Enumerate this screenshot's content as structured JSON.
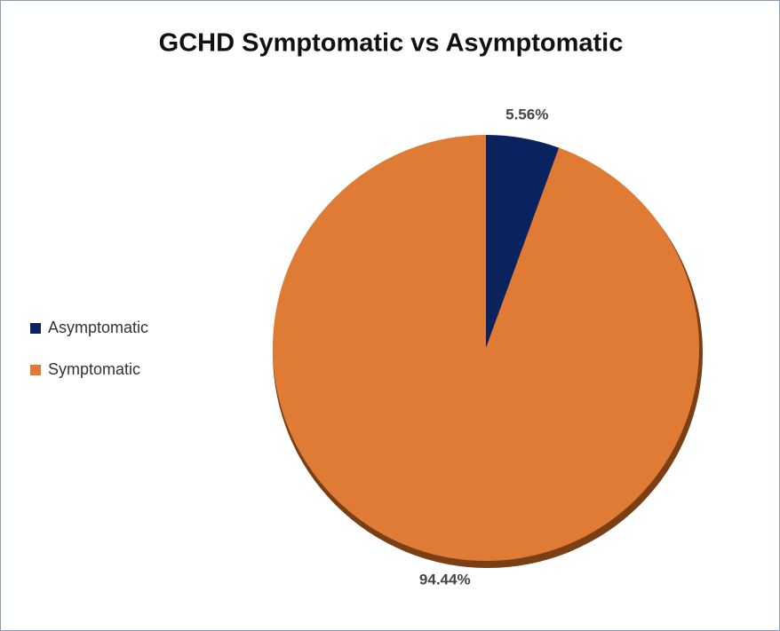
{
  "chart_data": {
    "type": "pie",
    "title": "GCHD Symptomatic vs Asymptomatic",
    "categories": [
      "Asymptomatic",
      "Symptomatic"
    ],
    "values": [
      5.56,
      94.44
    ],
    "value_labels": [
      "5.56%",
      "94.44%"
    ],
    "colors": [
      "#0b2260",
      "#e07b36"
    ],
    "legend": "left"
  }
}
